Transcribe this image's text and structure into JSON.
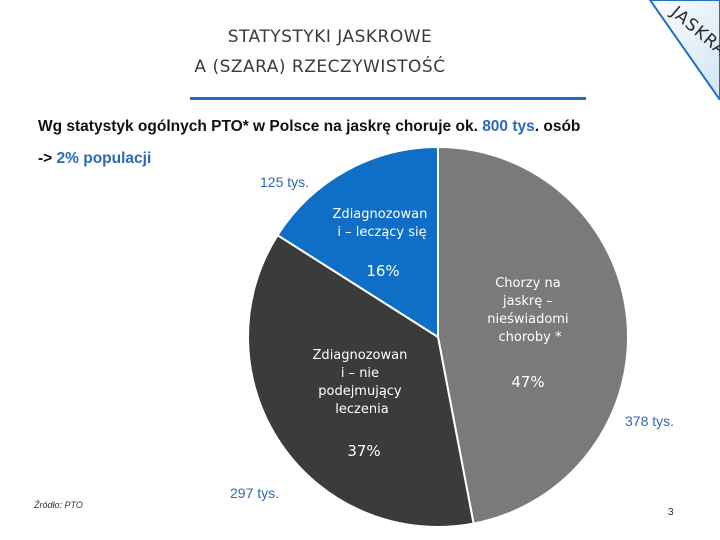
{
  "title": {
    "line1": "STATYSTYKI JASKROWE",
    "line2": "A (SZARA) RZECZYWISTOŚĆ"
  },
  "corner_badge": "JASKRA",
  "headline": {
    "text_before": "Wg statystyk ogólnych PTO* w Polsce na jaskrę choruje ok. ",
    "highlight": "800 tys",
    "text_after": ". osób"
  },
  "subline": {
    "prefix": "-> ",
    "highlight": "2% populacji"
  },
  "colors": {
    "accent_blue": "#1f6fc7",
    "slice_blue": "#0f6fc6",
    "slice_dark": "#3b3b3b",
    "slice_gray": "#7a7a7a"
  },
  "chart_data": {
    "type": "pie",
    "slices": [
      {
        "name": "Chorzy na jaskrę – nieświadomi choroby *",
        "value": 47,
        "value_label": "47%",
        "count_label": "378 tys."
      },
      {
        "name": "Zdiagnozowani – nie podejmujący leczenia",
        "value": 37,
        "value_label": "37%",
        "count_label": "297 tys."
      },
      {
        "name": "Zdiagnozowani – leczący się",
        "value": 16,
        "value_label": "16%",
        "count_label": "125 tys."
      }
    ],
    "start": "12 o'clock, clockwise"
  },
  "slice_texts": {
    "unaware": [
      "Chorzy na",
      "jaskrę –",
      "nieświadomi",
      "choroby *"
    ],
    "untreated": [
      "Zdiagnozowan",
      "i – nie",
      "podejmujący",
      "leczenia"
    ],
    "treated": [
      "Zdiagnozowan",
      "i – leczący się"
    ]
  },
  "source": "Źródło: PTO",
  "page_number": "3"
}
